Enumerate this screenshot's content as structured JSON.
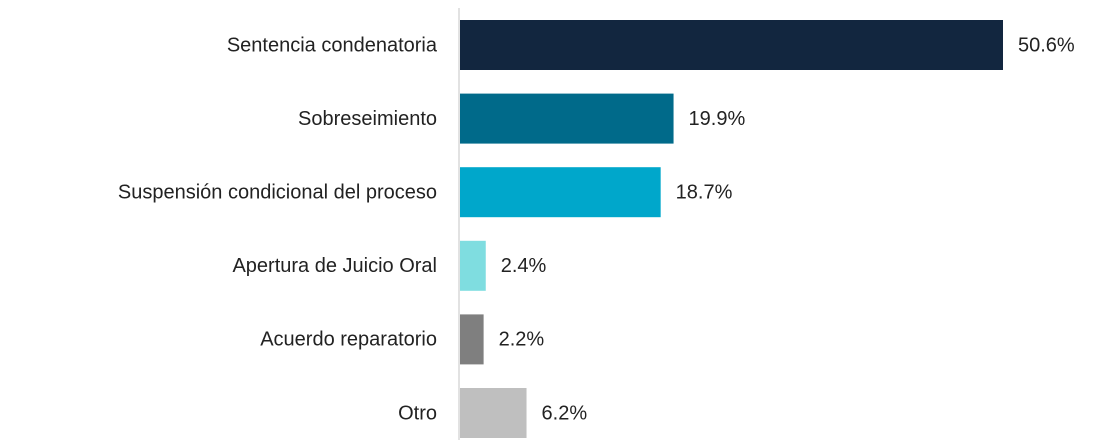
{
  "chart_data": {
    "type": "bar",
    "orientation": "horizontal",
    "categories": [
      "Sentencia condenatoria",
      "Sobreseimiento",
      "Suspensión condicional del proceso",
      "Apertura de Juicio Oral",
      "Acuerdo reparatorio",
      "Otro"
    ],
    "values": [
      50.6,
      19.9,
      18.7,
      2.4,
      2.2,
      6.2
    ],
    "value_labels": [
      "50.6%",
      "19.9%",
      "18.7%",
      "2.4%",
      "2.2%",
      "6.2%"
    ],
    "colors": [
      "#12263f",
      "#006a8a",
      "#00a7cb",
      "#7fdde0",
      "#7f7f7f",
      "#bfbfbf"
    ]
  }
}
